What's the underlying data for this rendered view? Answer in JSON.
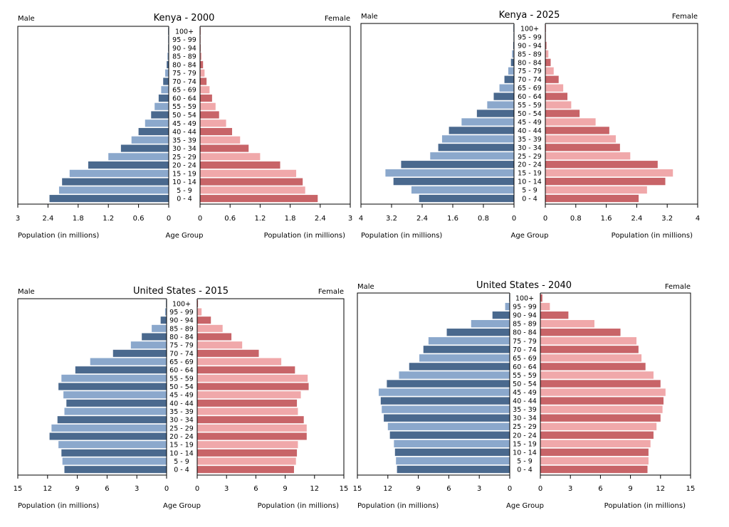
{
  "common": {
    "male_label": "Male",
    "female_label": "Female",
    "age_group_label": "Age Group",
    "xlabel_left": "Population (in millions)",
    "xlabel_right": "Population (in millions)"
  },
  "colors": {
    "male_dark": "#4a698e",
    "male_light": "#8ba8cc",
    "female_dark": "#c86468",
    "female_light": "#f0a8aa",
    "axis": "#000000"
  },
  "age_groups": [
    "0 - 4",
    "5 - 9",
    "10 - 14",
    "15 - 19",
    "20 - 24",
    "25 - 29",
    "30 - 34",
    "35 - 39",
    "40 - 44",
    "45 - 49",
    "50 - 54",
    "55 - 59",
    "60 - 64",
    "65 - 69",
    "70 - 74",
    "75 - 79",
    "80 - 84",
    "85 - 89",
    "90 - 94",
    "95 - 99",
    "100+"
  ],
  "chart_data": [
    {
      "type": "bar",
      "title": "Kenya - 2000",
      "xlim": [
        0,
        3
      ],
      "ticks": [
        "0",
        "0.6",
        "1.2",
        "1.8",
        "2.4",
        "3"
      ],
      "series": [
        {
          "name": "Male",
          "values": [
            2.37,
            2.18,
            2.12,
            1.97,
            1.6,
            1.2,
            0.95,
            0.74,
            0.6,
            0.47,
            0.35,
            0.28,
            0.2,
            0.15,
            0.11,
            0.07,
            0.04,
            0.025,
            0.01,
            0.003,
            0.001
          ]
        },
        {
          "name": "Female",
          "values": [
            2.35,
            2.1,
            2.05,
            1.92,
            1.6,
            1.2,
            0.97,
            0.8,
            0.64,
            0.52,
            0.38,
            0.31,
            0.24,
            0.19,
            0.13,
            0.09,
            0.06,
            0.03,
            0.012,
            0.004,
            0.001
          ]
        }
      ]
    },
    {
      "type": "bar",
      "title": "Kenya - 2025",
      "xlim": [
        0,
        4
      ],
      "ticks": [
        "0",
        "0.8",
        "1.6",
        "2.4",
        "3.2",
        "4"
      ],
      "series": [
        {
          "name": "Male",
          "values": [
            2.48,
            2.68,
            3.15,
            3.36,
            2.95,
            2.19,
            1.98,
            1.88,
            1.7,
            1.37,
            0.97,
            0.7,
            0.53,
            0.38,
            0.25,
            0.15,
            0.08,
            0.05,
            0.02,
            0.006,
            0.002
          ]
        },
        {
          "name": "Female",
          "values": [
            2.45,
            2.67,
            3.15,
            3.35,
            2.95,
            2.23,
            1.96,
            1.85,
            1.68,
            1.32,
            0.9,
            0.68,
            0.58,
            0.47,
            0.35,
            0.22,
            0.14,
            0.08,
            0.03,
            0.01,
            0.003
          ]
        }
      ]
    },
    {
      "type": "bar",
      "title": "United States - 2015",
      "xlim": [
        0,
        15
      ],
      "ticks": [
        "0",
        "3",
        "6",
        "9",
        "12",
        "15"
      ],
      "series": [
        {
          "name": "Male",
          "values": [
            10.3,
            10.5,
            10.6,
            10.9,
            11.8,
            11.6,
            11.0,
            10.3,
            10.1,
            10.4,
            10.9,
            10.6,
            9.2,
            7.7,
            5.4,
            3.6,
            2.5,
            1.5,
            0.6,
            0.15,
            0.02
          ]
        },
        {
          "name": "Female",
          "values": [
            9.9,
            10.1,
            10.2,
            10.3,
            11.2,
            11.2,
            10.9,
            10.3,
            10.2,
            10.6,
            11.4,
            11.3,
            10.0,
            8.6,
            6.3,
            4.6,
            3.5,
            2.6,
            1.4,
            0.45,
            0.08
          ]
        }
      ]
    },
    {
      "type": "bar",
      "title": "United States - 2040",
      "xlim": [
        0,
        15
      ],
      "ticks": [
        "0",
        "3",
        "6",
        "9",
        "12",
        "15"
      ],
      "series": [
        {
          "name": "Male",
          "values": [
            11.1,
            11.2,
            11.3,
            11.4,
            11.8,
            12.0,
            12.4,
            12.6,
            12.7,
            12.9,
            12.1,
            10.9,
            9.9,
            8.9,
            8.5,
            8.0,
            6.2,
            3.8,
            1.7,
            0.45,
            0.05
          ]
        },
        {
          "name": "Female",
          "values": [
            10.7,
            10.8,
            10.8,
            11.0,
            11.3,
            11.6,
            12.0,
            12.2,
            12.3,
            12.5,
            12.0,
            11.3,
            10.5,
            10.1,
            9.8,
            9.6,
            8.0,
            5.4,
            2.8,
            0.95,
            0.2
          ]
        }
      ]
    }
  ]
}
